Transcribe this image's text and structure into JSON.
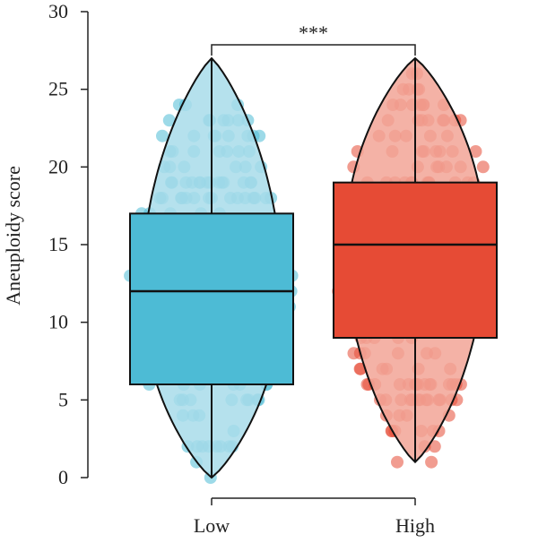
{
  "chart_data": {
    "type": "boxplot",
    "title": "",
    "xlabel": "",
    "ylabel": "Aneuploidy score",
    "ylim": [
      0,
      30
    ],
    "yticks": [
      0,
      5,
      10,
      15,
      20,
      25,
      30
    ],
    "grid": false,
    "legend": "none",
    "categories": [
      "Low",
      "High"
    ],
    "groups": [
      {
        "name": "Low",
        "color": "#4DBBD5",
        "violin_color": "#A8DCEA",
        "min": 0,
        "q1": 6,
        "median": 12,
        "q3": 17,
        "max": 27
      },
      {
        "name": "High",
        "color": "#E64B35",
        "violin_color": "#F2A596",
        "min": 1,
        "q1": 9,
        "median": 15,
        "q3": 19,
        "max": 27
      }
    ],
    "annotations": [
      {
        "type": "significance",
        "text": "***",
        "between": [
          "Low",
          "High"
        ]
      }
    ]
  }
}
